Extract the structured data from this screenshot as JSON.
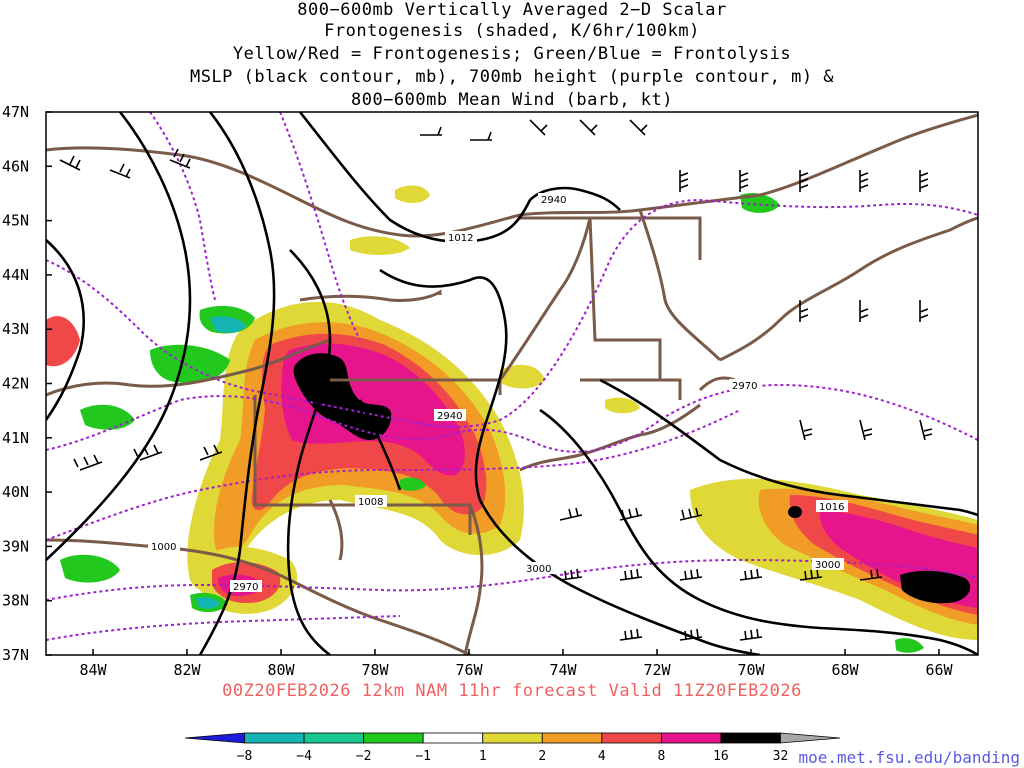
{
  "title_lines": [
    "800−600mb Vertically Averaged 2−D Scalar",
    "Frontogenesis (shaded, K/6hr/100km)",
    "Yellow/Red = Frontogenesis;  Green/Blue = Frontolysis",
    "MSLP (black contour, mb), 700mb height (purple contour, m) &",
    "800−600mb Mean Wind (barb, kt)"
  ],
  "lat_labels": [
    "47N",
    "46N",
    "45N",
    "44N",
    "43N",
    "42N",
    "41N",
    "40N",
    "39N",
    "38N",
    "37N"
  ],
  "lon_labels": [
    "84W",
    "82W",
    "80W",
    "78W",
    "76W",
    "74W",
    "72W",
    "70W",
    "68W",
    "66W"
  ],
  "contour_labels": {
    "mslp": [
      "1012",
      "1008",
      "1000",
      "1016"
    ],
    "height": [
      "2940",
      "2940",
      "2970",
      "2970",
      "3000",
      "3000"
    ]
  },
  "valid_text": "00Z20FEB2026 12km NAM 11hr forecast Valid 11Z20FEB2026",
  "colorbar": {
    "ticks": [
      "−8",
      "−4",
      "−2",
      "−1",
      "1",
      "2",
      "4",
      "8",
      "16",
      "32"
    ],
    "colors": [
      "#1c1cd8",
      "#14b4b4",
      "#18c890",
      "#22c81e",
      "#ffffff",
      "#e0d836",
      "#f09c26",
      "#f04848",
      "#e6158c",
      "#000000",
      "#a8a8a8"
    ]
  },
  "colors": {
    "border": "#7a5a48",
    "mslp": "#000000",
    "height": "#a020d0",
    "valid": "#f06060",
    "credit": "#5a5ae0"
  },
  "credit": "moe.met.fsu.edu/banding"
}
